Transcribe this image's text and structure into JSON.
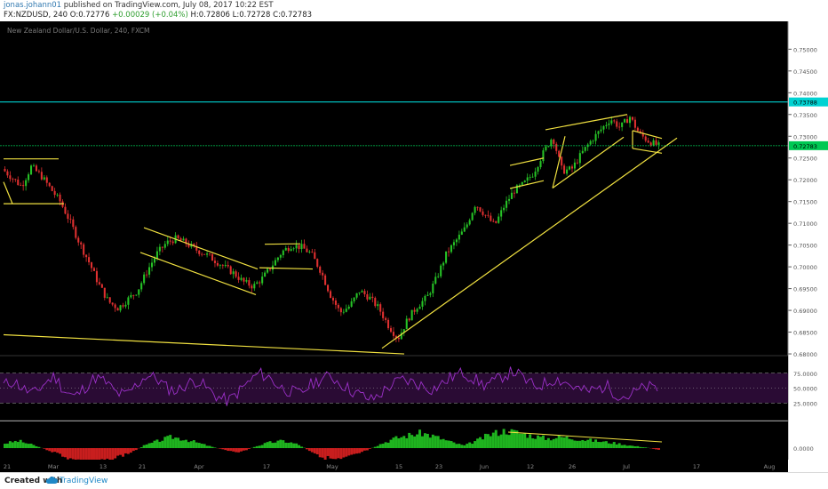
{
  "header": {
    "author": "jonas.johann01",
    "published": "published on TradingView.com, July 08, 2017 10:22 EST",
    "symbol_interval": "FX:NZDUSD, 240",
    "open": "O:0.72776",
    "change": "+0.00029 (+0.04%)",
    "high": "H:0.72806",
    "low": "L:0.72728",
    "close": "C:0.72783"
  },
  "footer": {
    "created_with": "Created with",
    "brand": "TradingView"
  },
  "chart_data": [
    {
      "type": "line",
      "title": "New Zealand Dollar/U.S. Dollar, 240, FXCM",
      "y_ticks": [
        "0.75000",
        "0.74500",
        "0.74000",
        "0.73500",
        "0.73000",
        "0.72500",
        "0.72000",
        "0.71500",
        "0.71000",
        "0.70500",
        "0.70000",
        "0.69500",
        "0.69000",
        "0.68500",
        "0.68000"
      ],
      "ylim": [
        0.6796,
        0.7564
      ],
      "x_ticks": [
        "21",
        "Mar",
        "13",
        "21",
        "Apr",
        "17",
        "May",
        "15",
        "23",
        "Jun",
        "12",
        "26",
        "Jul",
        "17",
        "Aug"
      ],
      "price_labels": [
        {
          "value": 0.73788,
          "label": "0.73788",
          "color": "#00d2d2"
        },
        {
          "value": 0.72783,
          "label": "0.72783",
          "color": "#00c853"
        }
      ],
      "approx_close_path": [
        0.7225,
        0.7205,
        0.7185,
        0.723,
        0.721,
        0.718,
        0.715,
        0.7105,
        0.7055,
        0.701,
        0.696,
        0.692,
        0.6905,
        0.6925,
        0.6945,
        0.699,
        0.703,
        0.7055,
        0.7065,
        0.7055,
        0.704,
        0.703,
        0.7015,
        0.7,
        0.6985,
        0.6965,
        0.6955,
        0.6975,
        0.7005,
        0.7035,
        0.705,
        0.7045,
        0.703,
        0.699,
        0.6935,
        0.6895,
        0.691,
        0.6945,
        0.693,
        0.6905,
        0.6865,
        0.6835,
        0.688,
        0.691,
        0.693,
        0.6975,
        0.703,
        0.706,
        0.709,
        0.7145,
        0.712,
        0.7095,
        0.714,
        0.7175,
        0.719,
        0.7215,
        0.726,
        0.73,
        0.722,
        0.7225,
        0.726,
        0.729,
        0.7315,
        0.734,
        0.732,
        0.7345,
        0.7305,
        0.7288,
        0.7278
      ],
      "rsi": {
        "ticks": [
          "75.0000",
          "50.0000",
          "25.0000"
        ],
        "ylim": [
          0,
          100
        ],
        "overbought": 75,
        "oversold": 25,
        "approx_values": [
          55,
          62,
          48,
          40,
          58,
          70,
          45,
          35,
          52,
          68,
          60,
          42,
          38,
          55,
          72,
          66,
          50,
          45,
          58,
          63,
          48,
          35,
          28,
          44,
          60,
          75,
          68,
          52,
          45,
          40,
          55,
          65,
          70,
          58,
          46,
          38,
          30,
          42,
          56,
          64,
          60,
          54,
          48,
          58,
          70,
          76,
          66,
          55,
          60,
          72,
          78,
          64,
          52,
          58,
          66,
          60,
          50,
          44,
          48,
          54,
          40,
          35,
          45,
          52,
          48
        ]
      },
      "histogram": {
        "ticks": [
          "0.0000"
        ],
        "approx_values": [
          0.6,
          0.9,
          0.4,
          -0.2,
          -0.8,
          -1.6,
          -2.2,
          -1.8,
          -1.2,
          -0.6,
          0.3,
          0.9,
          1.4,
          1.1,
          0.6,
          0.1,
          -0.3,
          -0.5,
          0.2,
          0.7,
          0.9,
          0.5,
          -0.4,
          -1.2,
          -1.6,
          -1.0,
          -0.3,
          0.5,
          1.2,
          1.6,
          1.9,
          1.4,
          0.8,
          0.3,
          1.0,
          1.8,
          2.2,
          1.9,
          1.5,
          1.2,
          1.4,
          1.2,
          1.0,
          0.8,
          0.6,
          0.3,
          0.1,
          -0.2
        ]
      },
      "grid": false,
      "background": "#000000",
      "colors": {
        "up": "#26c226",
        "down": "#e03030",
        "trendline": "#f0e040",
        "rsi": "#9b30c8",
        "rsi_band": "#2a0b34"
      }
    }
  ]
}
